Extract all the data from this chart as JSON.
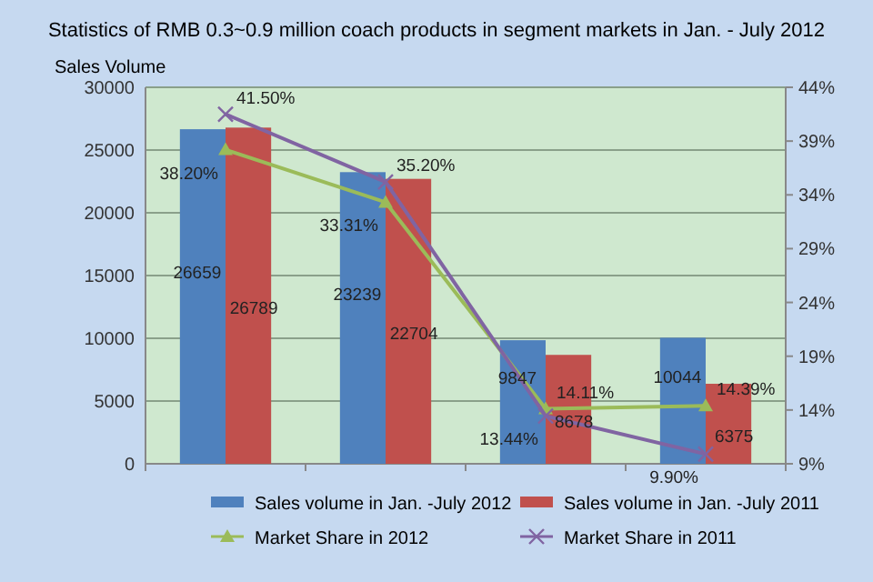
{
  "chart_data": {
    "type": "bar",
    "title": "Statistics of RMB 0.3~0.9 million coach products in segment markets in Jan. - July 2012",
    "ylabel": "Sales Volume",
    "categories": [
      null,
      null,
      null,
      null
    ],
    "series": [
      {
        "name": "Sales volume in Jan. -July 2012",
        "color": "#4f81bd",
        "values": [
          26659,
          23239,
          9847,
          10044
        ],
        "value_labels": [
          "26659",
          "23239",
          "9847",
          "10044"
        ]
      },
      {
        "name": "Sales volume in Jan. -July 2011",
        "color": "#c0504d",
        "values": [
          26789,
          22704,
          8678,
          6375
        ],
        "value_labels": [
          "26789",
          "22704",
          "8678",
          "6375"
        ]
      },
      {
        "name": "Market Share in 2012",
        "type": "line",
        "axis": "y2",
        "marker": "triangle",
        "color": "#9bbb59",
        "values": [
          38.2,
          33.31,
          14.11,
          14.39
        ],
        "value_labels": [
          "38.20%",
          "33.31%",
          "14.11%",
          "14.39%"
        ]
      },
      {
        "name": "Market Share in 2011",
        "type": "line",
        "axis": "y2",
        "marker": "cross",
        "color": "#8064a2",
        "values": [
          41.5,
          35.2,
          13.44,
          9.9
        ],
        "value_labels": [
          "41.50%",
          "35.20%",
          "13.44%",
          "9.90%"
        ]
      }
    ],
    "ylim": [
      0,
      30000
    ],
    "yticks": [
      0,
      5000,
      10000,
      15000,
      20000,
      25000,
      30000
    ],
    "y2lim": [
      9,
      44
    ],
    "y2ticks": [
      {
        "value": 9,
        "label": "9%"
      },
      {
        "value": 14,
        "label": "14%"
      },
      {
        "value": 19,
        "label": "19%"
      },
      {
        "value": 24,
        "label": "24%"
      },
      {
        "value": 29,
        "label": "29%"
      },
      {
        "value": 34,
        "label": "34%"
      },
      {
        "value": 39,
        "label": "39%"
      },
      {
        "value": 44,
        "label": "44%"
      }
    ],
    "grid": "y",
    "legend": "bottom"
  }
}
